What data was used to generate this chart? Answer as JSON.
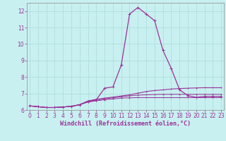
{
  "xlabel": "Windchill (Refroidissement éolien,°C)",
  "background_color": "#c8f0f0",
  "grid_color": "#b0dede",
  "line_color": "#993399",
  "spine_color": "#999999",
  "x": [
    0,
    1,
    2,
    3,
    4,
    5,
    6,
    7,
    8,
    9,
    10,
    11,
    12,
    13,
    14,
    15,
    16,
    17,
    18,
    19,
    20,
    21,
    22,
    23
  ],
  "series1": [
    6.25,
    6.2,
    6.15,
    6.15,
    6.18,
    6.22,
    6.32,
    6.52,
    6.62,
    7.32,
    7.4,
    8.72,
    11.82,
    12.22,
    11.82,
    11.42,
    9.62,
    8.52,
    7.22,
    6.87,
    6.77,
    6.82,
    6.82,
    6.82
  ],
  "series2": [
    6.25,
    6.2,
    6.15,
    6.15,
    6.18,
    6.22,
    6.32,
    6.55,
    6.65,
    6.72,
    6.78,
    6.85,
    6.92,
    7.02,
    7.12,
    7.18,
    7.22,
    7.27,
    7.3,
    7.32,
    7.34,
    7.35,
    7.35,
    7.35
  ],
  "series3": [
    6.25,
    6.2,
    6.15,
    6.15,
    6.18,
    6.22,
    6.32,
    6.5,
    6.58,
    6.67,
    6.74,
    6.8,
    6.86,
    6.9,
    6.92,
    6.94,
    6.95,
    6.95,
    6.95,
    6.95,
    6.95,
    6.95,
    6.95,
    6.95
  ],
  "series4": [
    6.25,
    6.2,
    6.15,
    6.15,
    6.18,
    6.22,
    6.32,
    6.48,
    6.56,
    6.62,
    6.67,
    6.72,
    6.74,
    6.75,
    6.75,
    6.75,
    6.75,
    6.75,
    6.75,
    6.75,
    6.75,
    6.75,
    6.75,
    6.75
  ],
  "ylim": [
    6.0,
    12.5
  ],
  "xlim": [
    -0.3,
    23.3
  ],
  "yticks": [
    6,
    7,
    8,
    9,
    10,
    11,
    12
  ],
  "xticks": [
    0,
    1,
    2,
    3,
    4,
    5,
    6,
    7,
    8,
    9,
    10,
    11,
    12,
    13,
    14,
    15,
    16,
    17,
    18,
    19,
    20,
    21,
    22,
    23
  ],
  "xlabel_fontsize": 6.0,
  "tick_fontsize": 5.5
}
